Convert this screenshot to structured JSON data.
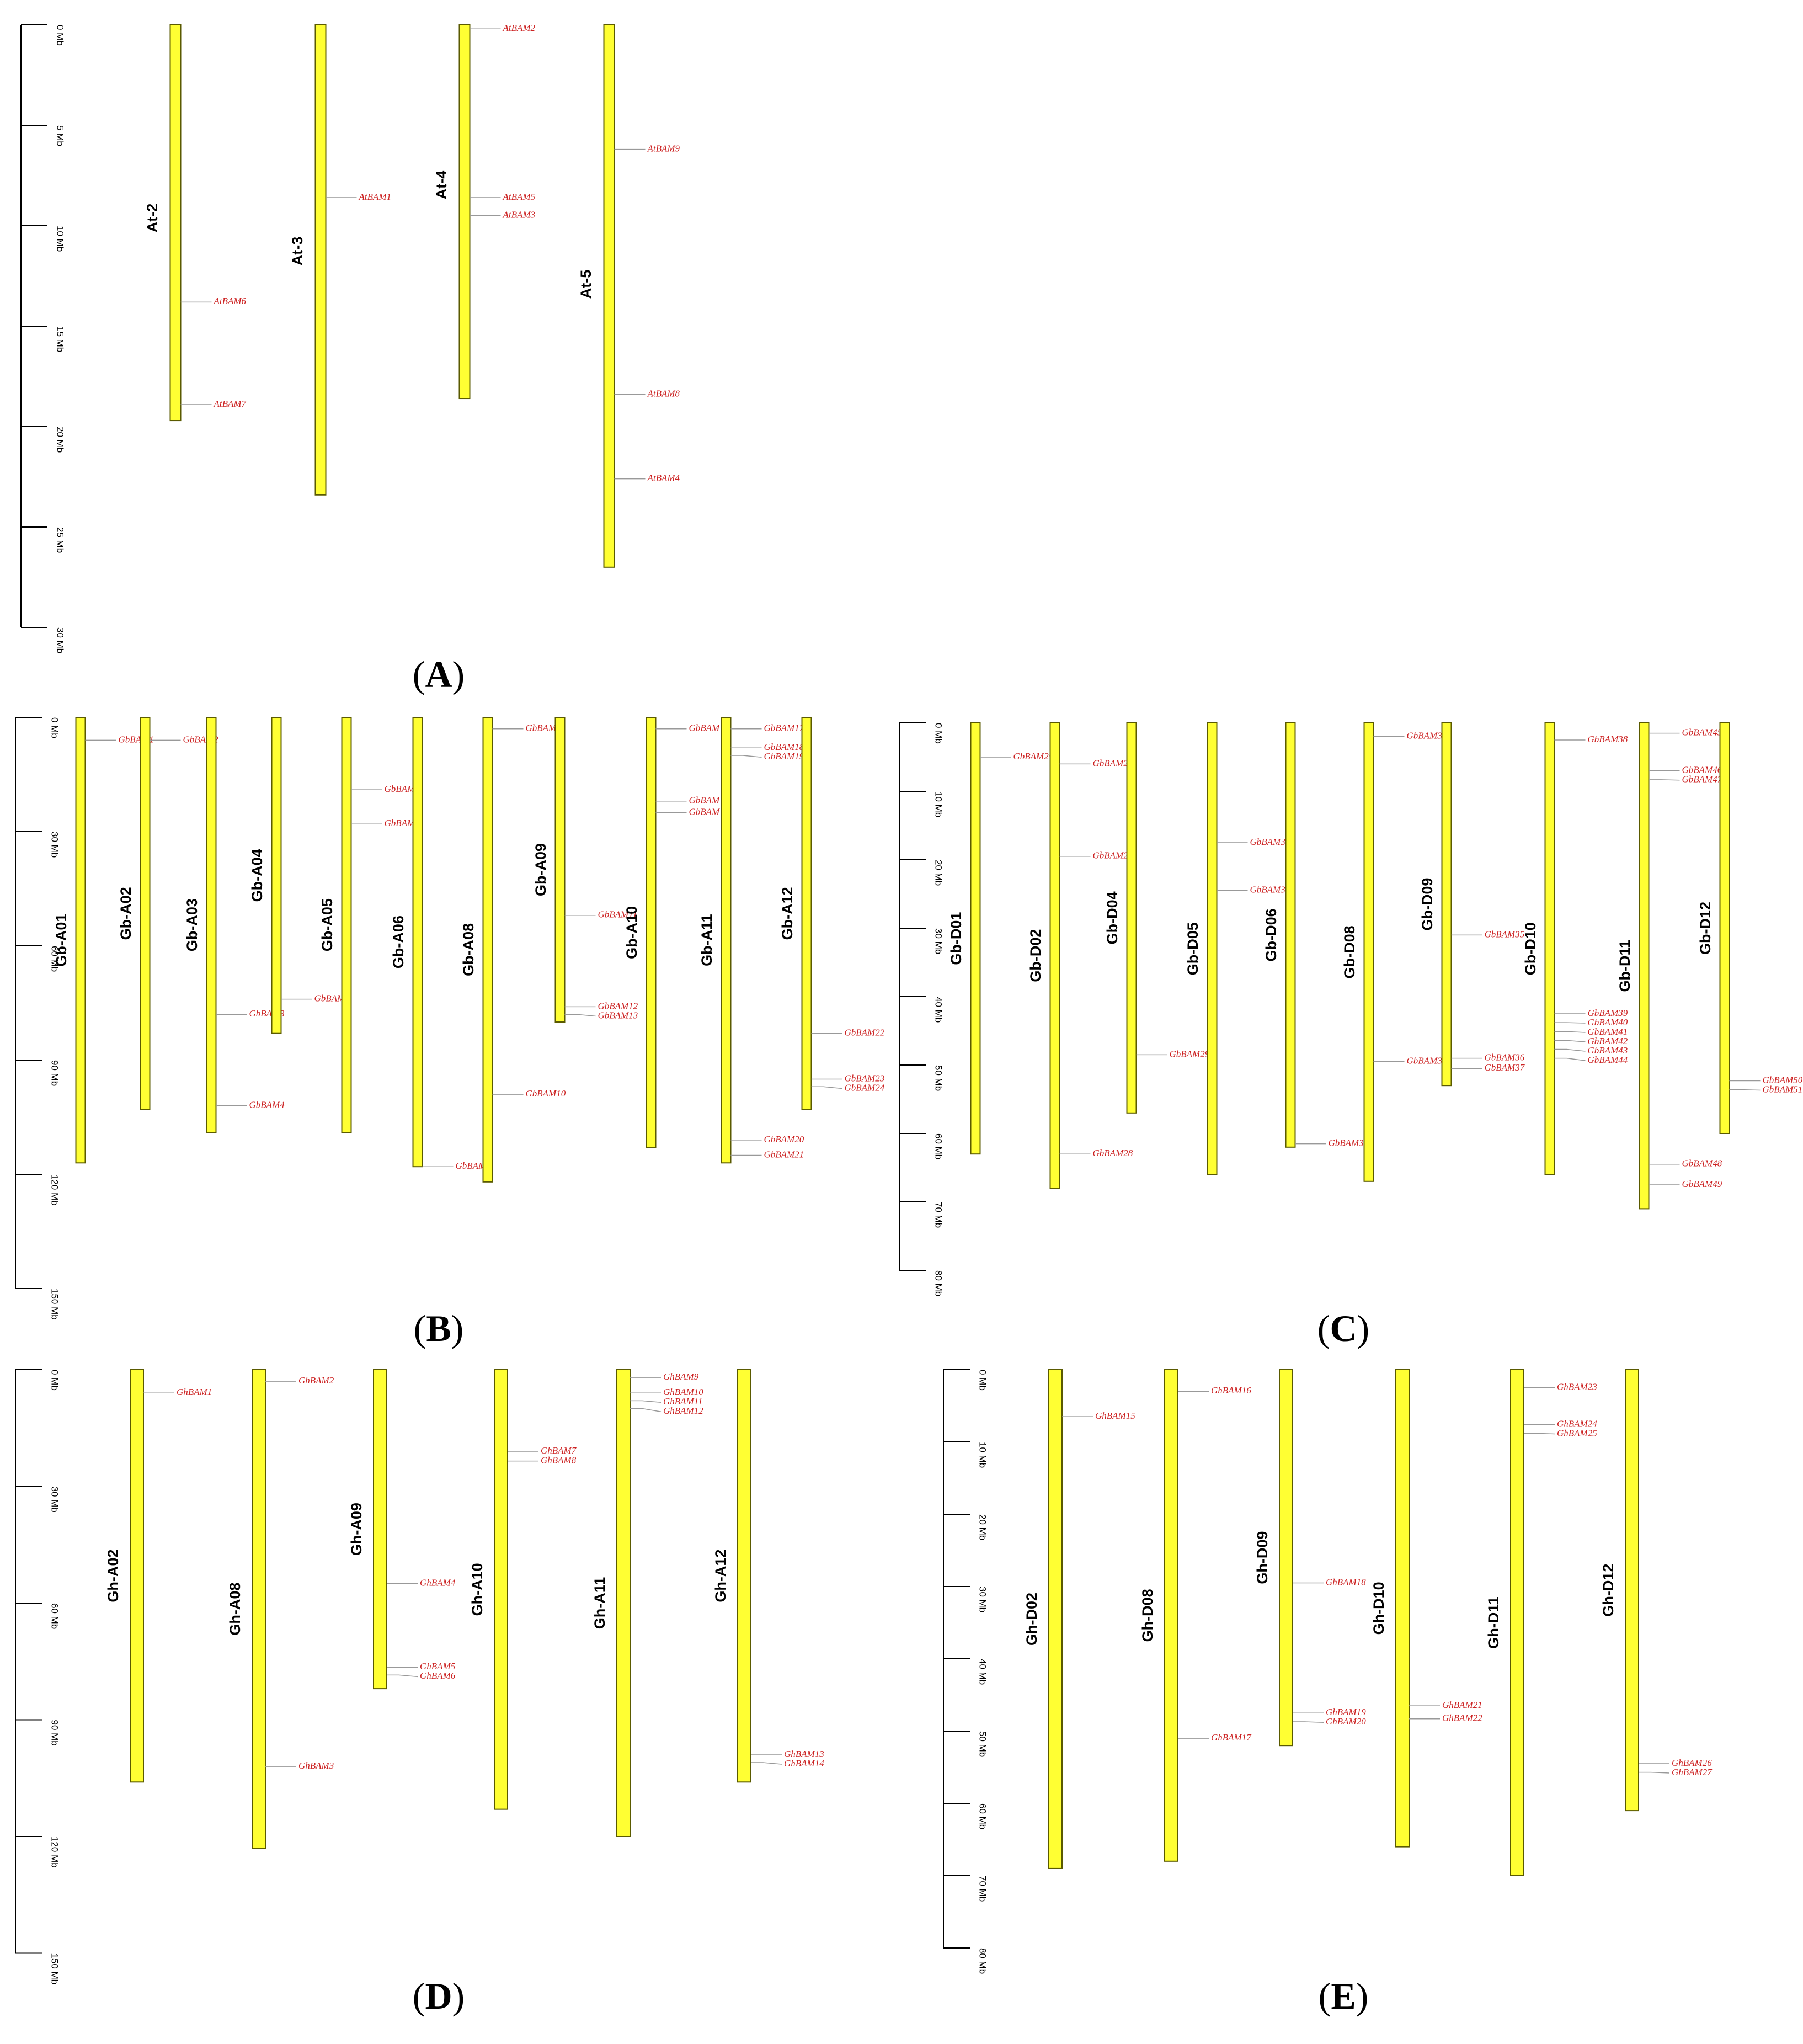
{
  "colors": {
    "chromosome_fill": "#ffff33",
    "chromosome_stroke": "#5a5a00",
    "gene_label": "#cc2222",
    "gene_line": "#999999",
    "axis": "#000000"
  },
  "panels": [
    {
      "letter": "A",
      "axis": {
        "max": 30,
        "step": 5,
        "unit": "Mb"
      },
      "chromosomes": [
        {
          "name": "At-2",
          "length": 19.7,
          "genes": [
            {
              "name": "AtBAM6",
              "pos": 13.8
            },
            {
              "name": "AtBAM7",
              "pos": 18.9
            }
          ]
        },
        {
          "name": "At-3",
          "length": 23.4,
          "genes": [
            {
              "name": "AtBAM1",
              "pos": 8.6
            }
          ]
        },
        {
          "name": "At-4",
          "length": 18.6,
          "genes": [
            {
              "name": "AtBAM2",
              "pos": 0.2
            },
            {
              "name": "AtBAM5",
              "pos": 8.6
            },
            {
              "name": "AtBAM3",
              "pos": 9.5
            }
          ]
        },
        {
          "name": "At-5",
          "length": 27.0,
          "genes": [
            {
              "name": "AtBAM9",
              "pos": 6.2
            },
            {
              "name": "AtBAM8",
              "pos": 18.4
            },
            {
              "name": "AtBAM4",
              "pos": 22.6
            }
          ]
        }
      ]
    },
    {
      "letter": "B",
      "axis": {
        "max": 150,
        "step": 30,
        "unit": "Mb"
      },
      "chromosomes": [
        {
          "name": "Gb-A01",
          "length": 117,
          "genes": [
            {
              "name": "GbBAM1",
              "pos": 6
            }
          ]
        },
        {
          "name": "Gb-A02",
          "length": 103,
          "genes": [
            {
              "name": "GbBAM2",
              "pos": 6
            }
          ]
        },
        {
          "name": "Gb-A03",
          "length": 109,
          "genes": [
            {
              "name": "GbBAM3",
              "pos": 78
            },
            {
              "name": "GbBAM4",
              "pos": 102
            }
          ]
        },
        {
          "name": "Gb-A04",
          "length": 83,
          "genes": [
            {
              "name": "GbBAM5",
              "pos": 74
            }
          ]
        },
        {
          "name": "Gb-A05",
          "length": 109,
          "genes": [
            {
              "name": "GbBAM6",
              "pos": 19
            },
            {
              "name": "GbBAM7",
              "pos": 28
            }
          ]
        },
        {
          "name": "Gb-A06",
          "length": 118,
          "genes": [
            {
              "name": "GbBAM8",
              "pos": 118
            }
          ]
        },
        {
          "name": "Gb-A08",
          "length": 122,
          "genes": [
            {
              "name": "GbBAM9",
              "pos": 3
            },
            {
              "name": "GbBAM10",
              "pos": 99
            }
          ]
        },
        {
          "name": "Gb-A09",
          "length": 80,
          "genes": [
            {
              "name": "GbBAM11",
              "pos": 52
            },
            {
              "name": "GbBAM12",
              "pos": 76
            },
            {
              "name": "GbBAM13",
              "pos": 78
            }
          ]
        },
        {
          "name": "Gb-A10",
          "length": 113,
          "genes": [
            {
              "name": "GbBAM14",
              "pos": 3
            },
            {
              "name": "GbBAM15",
              "pos": 22
            },
            {
              "name": "GbBAM16",
              "pos": 25
            }
          ]
        },
        {
          "name": "Gb-A11",
          "length": 117,
          "genes": [
            {
              "name": "GbBAM17",
              "pos": 3
            },
            {
              "name": "GbBAM18",
              "pos": 8
            },
            {
              "name": "GbBAM19",
              "pos": 10
            },
            {
              "name": "GbBAM20",
              "pos": 111
            },
            {
              "name": "GbBAM21",
              "pos": 115
            }
          ]
        },
        {
          "name": "Gb-A12",
          "length": 103,
          "genes": [
            {
              "name": "GbBAM22",
              "pos": 83
            },
            {
              "name": "GbBAM23",
              "pos": 95
            },
            {
              "name": "GbBAM24",
              "pos": 97
            }
          ]
        }
      ]
    },
    {
      "letter": "C",
      "axis": {
        "max": 80,
        "step": 10,
        "unit": "Mb"
      },
      "chromosomes": [
        {
          "name": "Gb-D01",
          "length": 63,
          "genes": [
            {
              "name": "GbBAM25",
              "pos": 5
            }
          ]
        },
        {
          "name": "Gb-D02",
          "length": 68,
          "genes": [
            {
              "name": "GbBAM26",
              "pos": 6
            },
            {
              "name": "GbBAM27",
              "pos": 19.5
            },
            {
              "name": "GbBAM28",
              "pos": 63
            }
          ]
        },
        {
          "name": "Gb-D04",
          "length": 57,
          "genes": [
            {
              "name": "GbBAM29",
              "pos": 48.5
            }
          ]
        },
        {
          "name": "Gb-D05",
          "length": 66,
          "genes": [
            {
              "name": "GbBAM30",
              "pos": 17.5
            },
            {
              "name": "GbBAM31",
              "pos": 24.5
            }
          ]
        },
        {
          "name": "Gb-D06",
          "length": 62,
          "genes": [
            {
              "name": "GbBAM32",
              "pos": 61.5
            }
          ]
        },
        {
          "name": "Gb-D08",
          "length": 67,
          "genes": [
            {
              "name": "GbBAM33",
              "pos": 2
            },
            {
              "name": "GbBAM34",
              "pos": 49.5
            }
          ]
        },
        {
          "name": "Gb-D09",
          "length": 53,
          "genes": [
            {
              "name": "GbBAM35",
              "pos": 31
            },
            {
              "name": "GbBAM36",
              "pos": 49
            },
            {
              "name": "GbBAM37",
              "pos": 50.5
            }
          ]
        },
        {
          "name": "Gb-D10",
          "length": 66,
          "genes": [
            {
              "name": "GbBAM38",
              "pos": 2.5
            },
            {
              "name": "GbBAM39",
              "pos": 42.5
            },
            {
              "name": "GbBAM40",
              "pos": 43.8
            },
            {
              "name": "GbBAM41",
              "pos": 45.1
            },
            {
              "name": "GbBAM42",
              "pos": 46.4
            },
            {
              "name": "GbBAM43",
              "pos": 47.7
            },
            {
              "name": "GbBAM44",
              "pos": 49
            }
          ]
        },
        {
          "name": "Gb-D11",
          "length": 71,
          "genes": [
            {
              "name": "GbBAM45",
              "pos": 1.5
            },
            {
              "name": "GbBAM46",
              "pos": 7
            },
            {
              "name": "GbBAM47",
              "pos": 8.3
            },
            {
              "name": "GbBAM48",
              "pos": 64.5
            },
            {
              "name": "GbBAM49",
              "pos": 67.5
            }
          ]
        },
        {
          "name": "Gb-D12",
          "length": 60,
          "genes": [
            {
              "name": "GbBAM50",
              "pos": 52.3
            },
            {
              "name": "GbBAM51",
              "pos": 53.6
            }
          ]
        }
      ]
    },
    {
      "letter": "D",
      "axis": {
        "max": 150,
        "step": 30,
        "unit": "Mb"
      },
      "chromosomes": [
        {
          "name": "Gh-A02",
          "length": 106,
          "genes": [
            {
              "name": "GhBAM1",
              "pos": 6
            }
          ]
        },
        {
          "name": "Gh-A08",
          "length": 123,
          "genes": [
            {
              "name": "GhBAM2",
              "pos": 3
            },
            {
              "name": "GhBAM3",
              "pos": 102
            }
          ]
        },
        {
          "name": "Gh-A09",
          "length": 82,
          "genes": [
            {
              "name": "GhBAM4",
              "pos": 55
            },
            {
              "name": "GhBAM5",
              "pos": 76.5
            },
            {
              "name": "GhBAM6",
              "pos": 78.5
            }
          ]
        },
        {
          "name": "Gh-A10",
          "length": 113,
          "genes": [
            {
              "name": "GhBAM7",
              "pos": 21
            },
            {
              "name": "GhBAM8",
              "pos": 23.5
            }
          ]
        },
        {
          "name": "Gh-A11",
          "length": 120,
          "genes": [
            {
              "name": "GhBAM9",
              "pos": 2
            },
            {
              "name": "GhBAM10",
              "pos": 6
            },
            {
              "name": "GhBAM11",
              "pos": 8
            },
            {
              "name": "GhBAM12",
              "pos": 10
            }
          ]
        },
        {
          "name": "Gh-A12",
          "length": 106,
          "genes": [
            {
              "name": "GhBAM13",
              "pos": 99
            },
            {
              "name": "GhBAM14",
              "pos": 101
            }
          ]
        }
      ]
    },
    {
      "letter": "E",
      "axis": {
        "max": 80,
        "step": 10,
        "unit": "Mb"
      },
      "chromosomes": [
        {
          "name": "Gh-D02",
          "length": 69,
          "genes": [
            {
              "name": "GhBAM15",
              "pos": 6.5
            }
          ]
        },
        {
          "name": "Gh-D08",
          "length": 68,
          "genes": [
            {
              "name": "GhBAM16",
              "pos": 3
            },
            {
              "name": "GhBAM17",
              "pos": 51
            }
          ]
        },
        {
          "name": "Gh-D09",
          "length": 52,
          "genes": [
            {
              "name": "GhBAM18",
              "pos": 29.5
            },
            {
              "name": "GhBAM19",
              "pos": 47.5
            },
            {
              "name": "GhBAM20",
              "pos": 48.7
            }
          ]
        },
        {
          "name": "Gh-D10",
          "length": 66,
          "genes": [
            {
              "name": "GhBAM21",
              "pos": 46.5
            },
            {
              "name": "GhBAM22",
              "pos": 48.3
            }
          ]
        },
        {
          "name": "Gh-D11",
          "length": 70,
          "genes": [
            {
              "name": "GhBAM23",
              "pos": 2.5
            },
            {
              "name": "GhBAM24",
              "pos": 7.6
            },
            {
              "name": "GhBAM25",
              "pos": 8.8
            }
          ]
        },
        {
          "name": "Gh-D12",
          "length": 61,
          "genes": [
            {
              "name": "GhBAM26",
              "pos": 54.5
            },
            {
              "name": "GhBAM27",
              "pos": 55.7
            }
          ]
        }
      ]
    }
  ]
}
